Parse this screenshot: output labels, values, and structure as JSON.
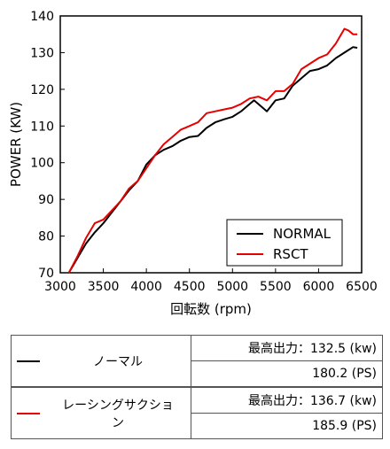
{
  "chart_data": {
    "type": "line",
    "xlabel": "回転数 (rpm)",
    "ylabel": "POWER (KW)",
    "xlim": [
      3000,
      6500
    ],
    "ylim": [
      70,
      140
    ],
    "x_ticks": [
      "3000",
      "3500",
      "4000",
      "4500",
      "5000",
      "5500",
      "6000",
      "6500"
    ],
    "y_ticks": [
      "70",
      "80",
      "90",
      "100",
      "110",
      "120",
      "130",
      "140"
    ],
    "grid": false,
    "legend_position": "bottom-right",
    "series": [
      {
        "name": "NORMAL",
        "color": "#000000",
        "x": [
          3100,
          3200,
          3300,
          3400,
          3500,
          3600,
          3700,
          3800,
          3900,
          4000,
          4100,
          4200,
          4300,
          4400,
          4500,
          4600,
          4700,
          4800,
          4900,
          5000,
          5100,
          5200,
          5250,
          5300,
          5400,
          5500,
          5600,
          5700,
          5800,
          5900,
          6000,
          6100,
          6200,
          6300,
          6400,
          6450
        ],
        "y": [
          70,
          74,
          78,
          81,
          83.5,
          86.5,
          89.5,
          92.5,
          95,
          99.5,
          102,
          103.5,
          104.5,
          106,
          107,
          107.3,
          109.5,
          111,
          111.8,
          112.5,
          114,
          116,
          117,
          116,
          114,
          117,
          117.5,
          121,
          123,
          125,
          125.5,
          126.5,
          128.5,
          130,
          131.5,
          131.3
        ]
      },
      {
        "name": "RSCT",
        "color": "#e60000",
        "x": [
          3100,
          3200,
          3300,
          3400,
          3500,
          3600,
          3700,
          3800,
          3900,
          4000,
          4100,
          4200,
          4300,
          4400,
          4500,
          4600,
          4700,
          4800,
          4900,
          5000,
          5100,
          5200,
          5300,
          5400,
          5500,
          5600,
          5700,
          5800,
          5900,
          6000,
          6100,
          6200,
          6300,
          6350,
          6400,
          6450
        ],
        "y": [
          70,
          74.5,
          79.5,
          83.5,
          84.5,
          87,
          89.5,
          93,
          95,
          98.5,
          102,
          105,
          107,
          109,
          110,
          111,
          113.5,
          114,
          114.5,
          115,
          116,
          117.5,
          118,
          117,
          119.5,
          119.5,
          121.5,
          125.5,
          127,
          128.5,
          129.5,
          132.5,
          136.5,
          136,
          135,
          135
        ]
      }
    ]
  },
  "table": {
    "rows": [
      {
        "name": "ノーマル",
        "swatch_color": "#000000",
        "max_power_kw": "最高出力：132.5 (kw)",
        "max_power_ps": "180.2 (PS)"
      },
      {
        "name": "レーシングサクション",
        "swatch_color": "#e60000",
        "max_power_kw": "最高出力：136.7 (kw)",
        "max_power_ps": "185.9 (PS)"
      }
    ]
  }
}
